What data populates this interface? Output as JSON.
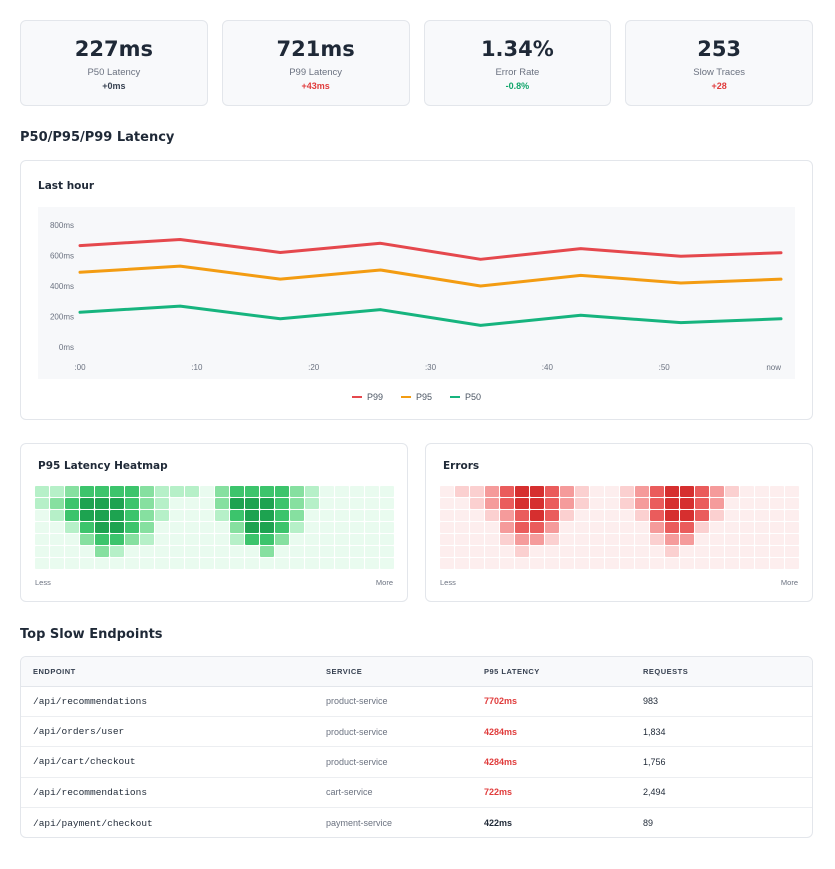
{
  "stats": [
    {
      "value": "227ms",
      "label": "P50 Latency",
      "delta": "+0ms",
      "delta_color": "#374151"
    },
    {
      "value": "721ms",
      "label": "P99 Latency",
      "delta": "+43ms",
      "delta_color": "#e03c3c"
    },
    {
      "value": "1.34%",
      "label": "Error Rate",
      "delta": "-0.8%",
      "delta_color": "#10a56a"
    },
    {
      "value": "253",
      "label": "Slow Traces",
      "delta": "+28",
      "delta_color": "#e03c3c"
    }
  ],
  "latency_section": {
    "title": "P50/P95/P99 Latency",
    "card_title": "Last hour"
  },
  "chart_data": {
    "type": "line",
    "title": "Last hour",
    "xlabel": "",
    "ylabel": "",
    "x": [
      ":00",
      ":10",
      ":20",
      ":30",
      ":40",
      ":50",
      "now"
    ],
    "yticks": [
      "0ms",
      "200ms",
      "400ms",
      "600ms",
      "800ms"
    ],
    "ylim": [
      0,
      800
    ],
    "grid": false,
    "legend": "bottom",
    "series": [
      {
        "name": "P99",
        "color": "#e5484d",
        "points": [
          [
            0,
            665
          ],
          [
            1,
            705
          ],
          [
            2,
            620
          ],
          [
            3,
            680
          ],
          [
            4,
            575
          ],
          [
            5,
            645
          ],
          [
            6,
            595
          ],
          [
            7,
            618
          ]
        ]
      },
      {
        "name": "P95",
        "color": "#f39c12",
        "points": [
          [
            0,
            490
          ],
          [
            1,
            530
          ],
          [
            2,
            445
          ],
          [
            3,
            505
          ],
          [
            4,
            400
          ],
          [
            5,
            470
          ],
          [
            6,
            420
          ],
          [
            7,
            445
          ]
        ]
      },
      {
        "name": "P50",
        "color": "#16b47e",
        "points": [
          [
            0,
            228
          ],
          [
            1,
            268
          ],
          [
            2,
            185
          ],
          [
            3,
            245
          ],
          [
            4,
            142
          ],
          [
            5,
            208
          ],
          [
            6,
            160
          ],
          [
            7,
            185
          ]
        ]
      }
    ],
    "x_tick_positions": [
      0,
      1.1667,
      2.3333,
      3.5,
      4.6667,
      5.8333,
      7
    ]
  },
  "heatmap": {
    "title": "P95 Latency Heatmap",
    "less": "Less",
    "more": "More",
    "palette": [
      "#e9fbef",
      "#b6f0c8",
      "#86e0a0",
      "#3cc46c",
      "#1da350"
    ],
    "grid": [
      [
        1,
        1,
        2,
        3,
        3,
        3,
        3,
        2,
        1,
        1,
        1,
        0,
        2,
        3,
        3,
        3,
        3,
        2,
        1,
        0,
        0,
        0,
        0,
        0
      ],
      [
        1,
        2,
        3,
        4,
        4,
        4,
        3,
        2,
        1,
        0,
        0,
        0,
        2,
        4,
        4,
        4,
        3,
        2,
        1,
        0,
        0,
        0,
        0,
        0
      ],
      [
        0,
        1,
        3,
        4,
        4,
        4,
        3,
        2,
        1,
        0,
        0,
        0,
        1,
        3,
        4,
        4,
        3,
        2,
        0,
        0,
        0,
        0,
        0,
        0
      ],
      [
        0,
        0,
        1,
        3,
        4,
        4,
        3,
        2,
        0,
        0,
        0,
        0,
        0,
        2,
        4,
        4,
        3,
        1,
        0,
        0,
        0,
        0,
        0,
        0
      ],
      [
        0,
        0,
        0,
        2,
        3,
        3,
        2,
        1,
        0,
        0,
        0,
        0,
        0,
        1,
        3,
        3,
        2,
        0,
        0,
        0,
        0,
        0,
        0,
        0
      ],
      [
        0,
        0,
        0,
        0,
        2,
        1,
        0,
        0,
        0,
        0,
        0,
        0,
        0,
        0,
        0,
        2,
        0,
        0,
        0,
        0,
        0,
        0,
        0,
        0
      ],
      [
        0,
        0,
        0,
        0,
        0,
        0,
        0,
        0,
        0,
        0,
        0,
        0,
        0,
        0,
        0,
        0,
        0,
        0,
        0,
        0,
        0,
        0,
        0,
        0
      ]
    ]
  },
  "errors": {
    "title": "Errors",
    "less": "Less",
    "more": "More",
    "palette": [
      "#fdeeee",
      "#fbd0d0",
      "#f59b9b",
      "#ea5c5c",
      "#d62f2f"
    ],
    "grid": [
      [
        0,
        1,
        1,
        2,
        3,
        4,
        4,
        3,
        2,
        1,
        0,
        0,
        1,
        2,
        3,
        4,
        4,
        3,
        2,
        1,
        0,
        0,
        0,
        0
      ],
      [
        0,
        0,
        1,
        2,
        3,
        4,
        4,
        3,
        2,
        1,
        0,
        0,
        1,
        2,
        3,
        4,
        4,
        3,
        2,
        0,
        0,
        0,
        0,
        0
      ],
      [
        0,
        0,
        0,
        1,
        2,
        3,
        4,
        3,
        1,
        0,
        0,
        0,
        0,
        1,
        3,
        4,
        4,
        3,
        1,
        0,
        0,
        0,
        0,
        0
      ],
      [
        0,
        0,
        0,
        0,
        2,
        3,
        3,
        2,
        0,
        0,
        0,
        0,
        0,
        0,
        2,
        3,
        3,
        1,
        0,
        0,
        0,
        0,
        0,
        0
      ],
      [
        0,
        0,
        0,
        0,
        1,
        2,
        2,
        1,
        0,
        0,
        0,
        0,
        0,
        0,
        1,
        2,
        2,
        0,
        0,
        0,
        0,
        0,
        0,
        0
      ],
      [
        0,
        0,
        0,
        0,
        0,
        1,
        0,
        0,
        0,
        0,
        0,
        0,
        0,
        0,
        0,
        1,
        0,
        0,
        0,
        0,
        0,
        0,
        0,
        0
      ],
      [
        0,
        0,
        0,
        0,
        0,
        0,
        0,
        0,
        0,
        0,
        0,
        0,
        0,
        0,
        0,
        0,
        0,
        0,
        0,
        0,
        0,
        0,
        0,
        0
      ]
    ]
  },
  "endpoints": {
    "title": "Top Slow Endpoints",
    "headers": {
      "endpoint": "ENDPOINT",
      "service": "SERVICE",
      "latency": "P95 LATENCY",
      "requests": "REQUESTS"
    },
    "rows": [
      {
        "endpoint": "/api/recommendations",
        "service": "product-service",
        "latency": "7702ms",
        "latency_color": "#e03c3c",
        "requests": "983"
      },
      {
        "endpoint": "/api/orders/user",
        "service": "product-service",
        "latency": "4284ms",
        "latency_color": "#e03c3c",
        "requests": "1,834"
      },
      {
        "endpoint": "/api/cart/checkout",
        "service": "product-service",
        "latency": "4284ms",
        "latency_color": "#e03c3c",
        "requests": "1,756"
      },
      {
        "endpoint": "/api/recommendations",
        "service": "cart-service",
        "latency": "722ms",
        "latency_color": "#e03c3c",
        "requests": "2,494"
      },
      {
        "endpoint": "/api/payment/checkout",
        "service": "payment-service",
        "latency": "422ms",
        "latency_color": "#1f2937",
        "requests": "89"
      }
    ]
  }
}
